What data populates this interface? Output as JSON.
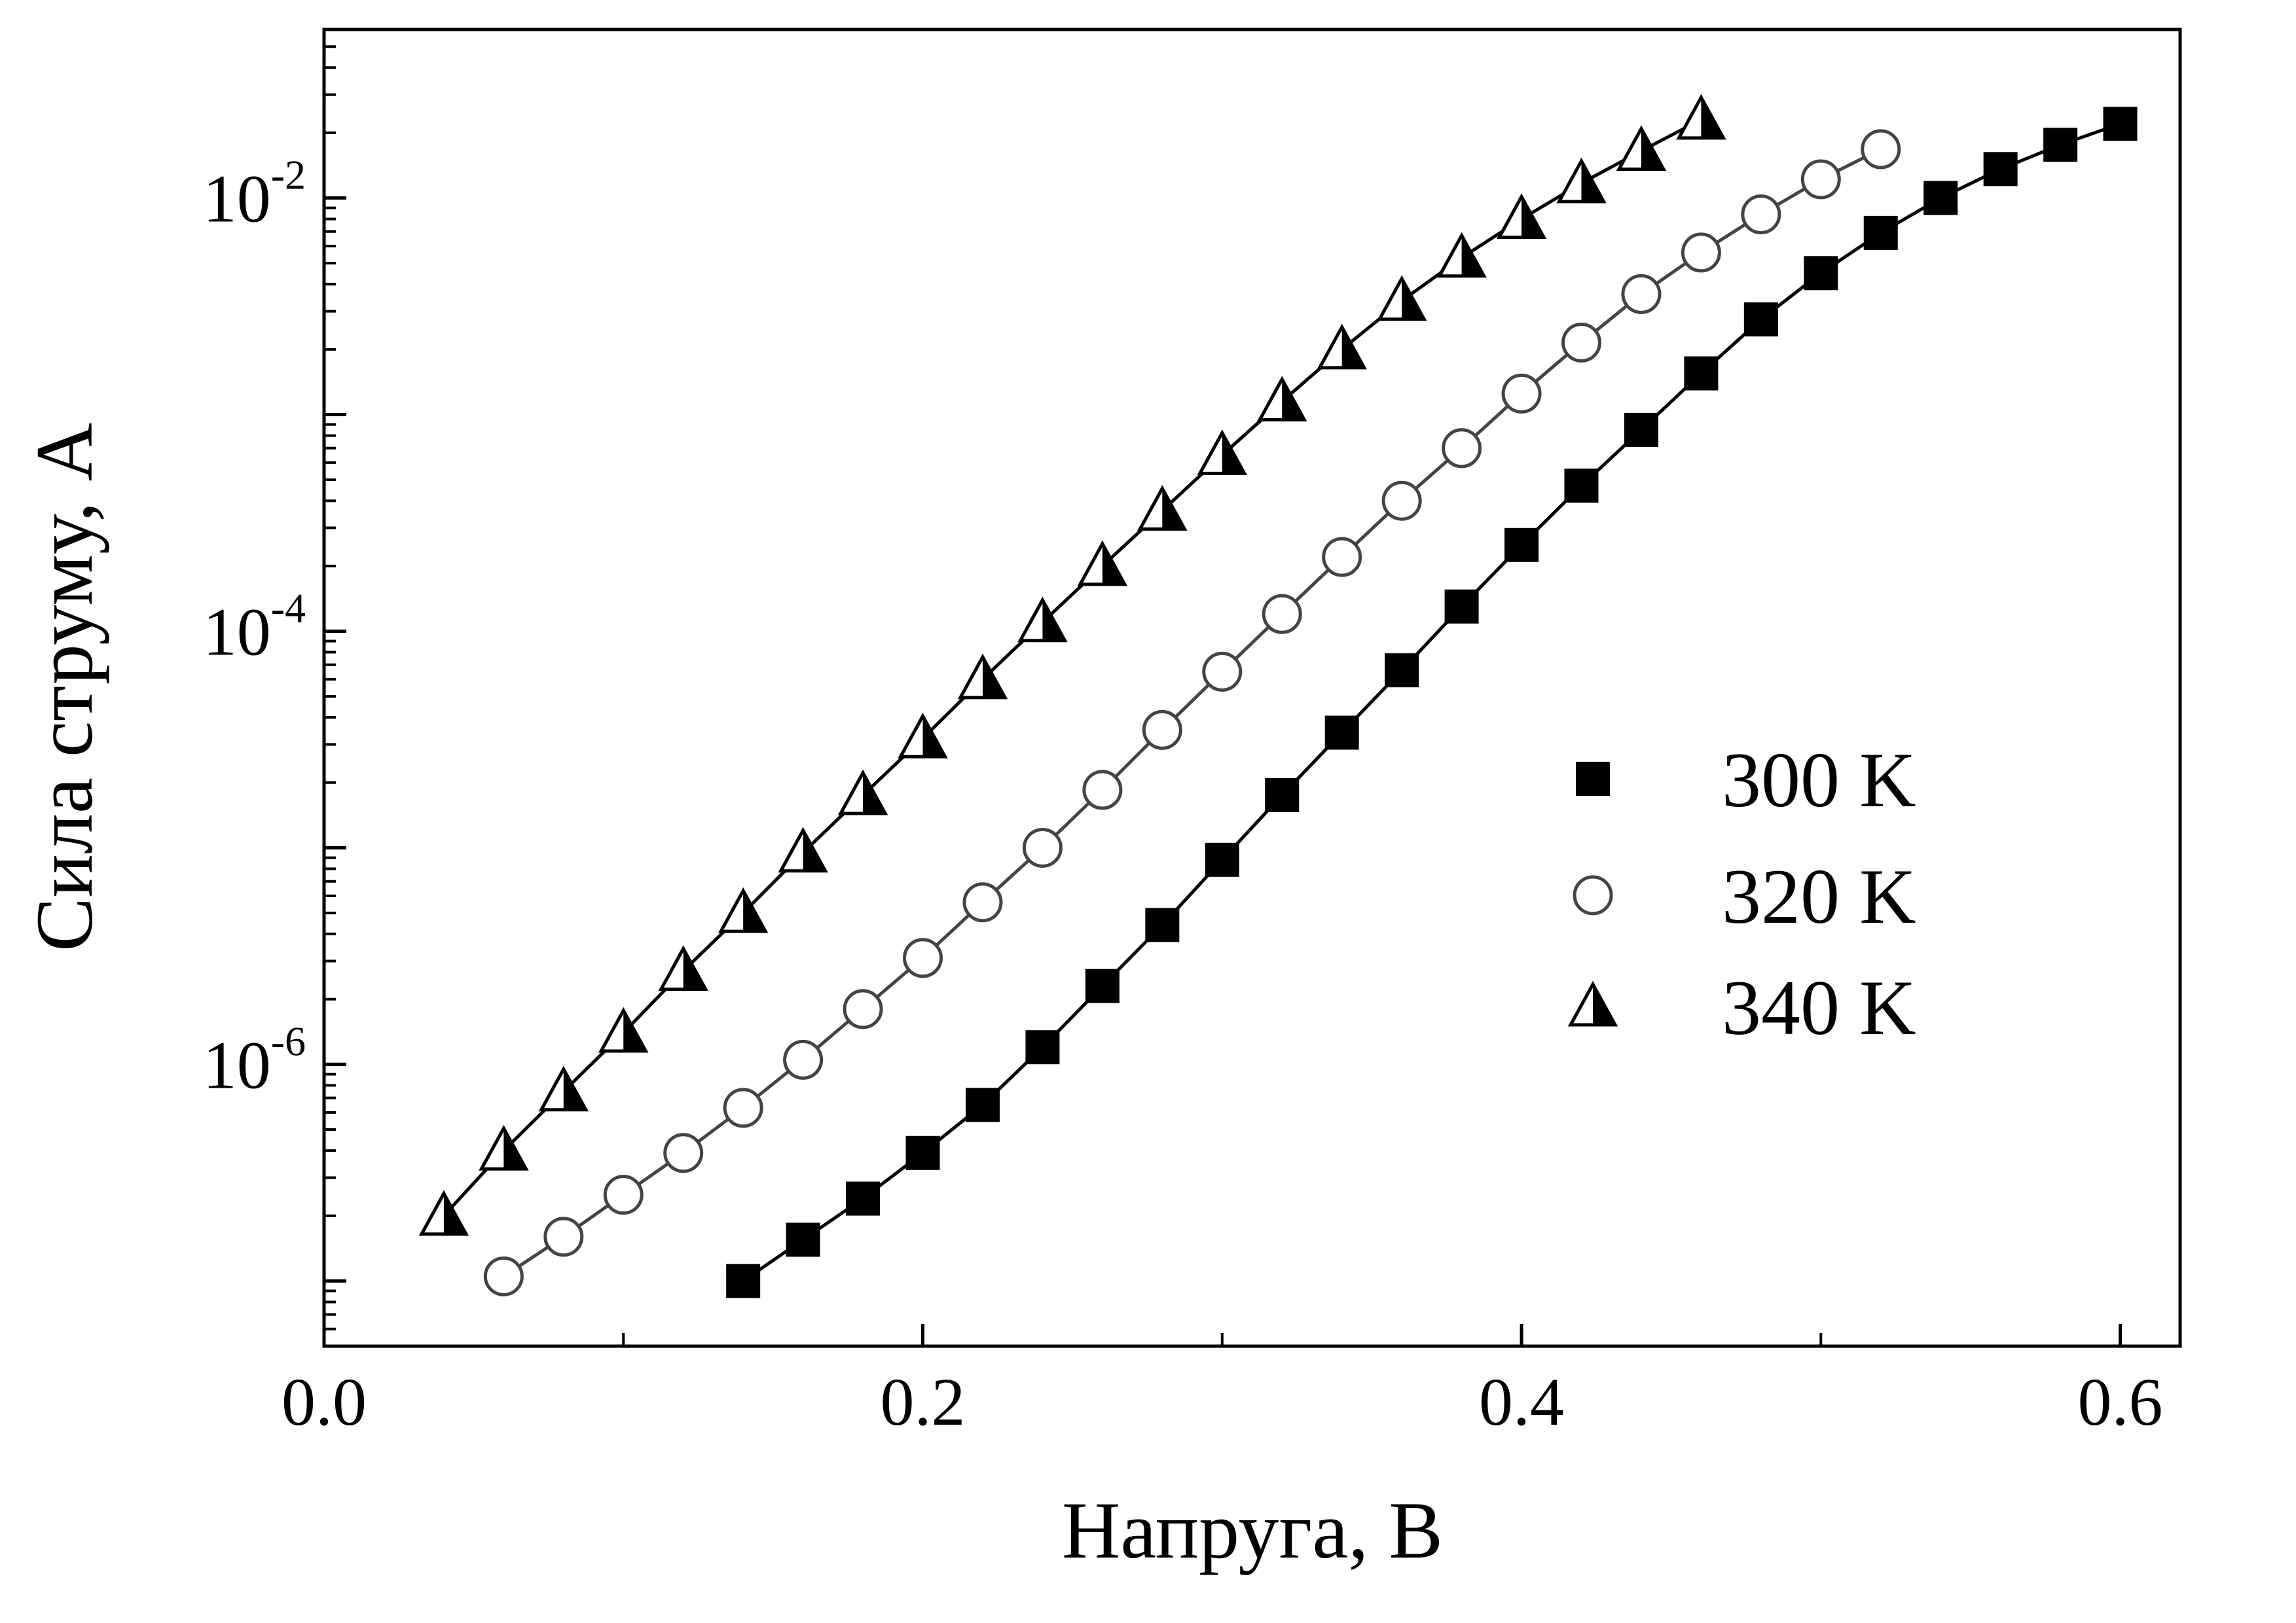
{
  "chart_data": {
    "type": "scatter",
    "xlabel": "Напруга, В",
    "ylabel": "Сила струму, А",
    "xlim": [
      0.0,
      0.62
    ],
    "ylim": [
      5e-08,
      0.06
    ],
    "yscale": "log",
    "x_ticks": [
      0.0,
      0.2,
      0.4,
      0.6
    ],
    "x_tick_labels": [
      "0.0",
      "0.2",
      "0.4",
      "0.6"
    ],
    "y_ticks": [
      1e-06,
      0.0001,
      0.01
    ],
    "y_tick_labels": [
      {
        "base": "10",
        "exp": "-6"
      },
      {
        "base": "10",
        "exp": "-4"
      },
      {
        "base": "10",
        "exp": "-2"
      }
    ],
    "grid": false,
    "legend_position": "right",
    "series": [
      {
        "name": "300 K",
        "marker": "filled-square",
        "color": "#000000",
        "x": [
          0.14,
          0.16,
          0.18,
          0.2,
          0.22,
          0.24,
          0.26,
          0.28,
          0.3,
          0.32,
          0.34,
          0.36,
          0.38,
          0.4,
          0.42,
          0.44,
          0.46,
          0.48,
          0.5,
          0.52,
          0.54,
          0.56,
          0.58,
          0.6
        ],
        "y": [
          1e-07,
          1.55e-07,
          2.4e-07,
          3.9e-07,
          6.5e-07,
          1.2e-06,
          2.3e-06,
          4.4e-06,
          8.8e-06,
          1.75e-05,
          3.4e-05,
          6.6e-05,
          0.00013,
          0.00025,
          0.00047,
          0.00085,
          0.00155,
          0.00275,
          0.0045,
          0.0069,
          0.01,
          0.0136,
          0.0176,
          0.022
        ]
      },
      {
        "name": "320 K",
        "marker": "open-circle",
        "color": "#444444",
        "x": [
          0.06,
          0.08,
          0.1,
          0.12,
          0.14,
          0.16,
          0.18,
          0.2,
          0.22,
          0.24,
          0.26,
          0.28,
          0.3,
          0.32,
          0.34,
          0.36,
          0.38,
          0.4,
          0.42,
          0.44,
          0.46,
          0.48,
          0.5,
          0.52
        ],
        "y": [
          1.05e-07,
          1.6e-07,
          2.5e-07,
          3.9e-07,
          6.3e-07,
          1.05e-06,
          1.8e-06,
          3.1e-06,
          5.6e-06,
          1e-05,
          1.85e-05,
          3.5e-05,
          6.5e-05,
          0.00012,
          0.00022,
          0.0004,
          0.0007,
          0.00125,
          0.00215,
          0.0036,
          0.0056,
          0.0084,
          0.0122,
          0.0168
        ]
      },
      {
        "name": "340 K",
        "marker": "half-filled-triangle",
        "color": "#000000",
        "x": [
          0.04,
          0.06,
          0.08,
          0.1,
          0.12,
          0.14,
          0.16,
          0.18,
          0.2,
          0.22,
          0.24,
          0.26,
          0.28,
          0.3,
          0.32,
          0.34,
          0.36,
          0.38,
          0.4,
          0.42,
          0.44,
          0.46
        ],
        "y": [
          2e-07,
          4e-07,
          7.5e-07,
          1.4e-06,
          2.7e-06,
          5e-06,
          9.5e-06,
          1.75e-05,
          3.2e-05,
          6e-05,
          0.00011,
          0.0002,
          0.00036,
          0.00065,
          0.00115,
          0.002,
          0.00335,
          0.0053,
          0.008,
          0.0117,
          0.0165,
          0.023
        ]
      }
    ]
  }
}
